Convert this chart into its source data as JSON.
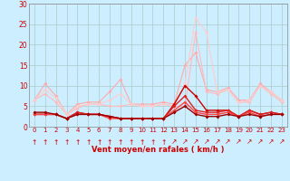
{
  "xlabel": "Vent moyen/en rafales ( km/h )",
  "bg_color": "#cceeff",
  "grid_color": "#aacccc",
  "xlim": [
    -0.5,
    23.5
  ],
  "ylim": [
    0,
    30
  ],
  "yticks": [
    0,
    5,
    10,
    15,
    20,
    25,
    30
  ],
  "xticks": [
    0,
    1,
    2,
    3,
    4,
    5,
    6,
    7,
    8,
    9,
    10,
    11,
    12,
    13,
    14,
    15,
    16,
    17,
    18,
    19,
    20,
    21,
    22,
    23
  ],
  "lines": [
    {
      "y": [
        6.5,
        10.5,
        7.5,
        3.0,
        5.5,
        6.0,
        6.0,
        8.5,
        11.5,
        5.5,
        5.5,
        5.5,
        6.0,
        5.5,
        15.0,
        18.0,
        9.0,
        8.5,
        9.5,
        6.5,
        6.5,
        10.5,
        8.5,
        6.5
      ],
      "color": "#ffaaaa",
      "lw": 0.8,
      "marker": "D",
      "ms": 2.0
    },
    {
      "y": [
        6.5,
        8.0,
        6.0,
        3.0,
        4.5,
        5.5,
        5.5,
        5.0,
        5.0,
        5.5,
        5.0,
        5.0,
        5.5,
        5.0,
        5.0,
        23.0,
        8.5,
        8.0,
        9.0,
        6.0,
        6.0,
        10.0,
        8.0,
        6.0
      ],
      "color": "#ffbbbb",
      "lw": 0.8,
      "marker": "D",
      "ms": 2.0
    },
    {
      "y": [
        6.5,
        9.0,
        7.0,
        3.0,
        5.0,
        5.5,
        5.5,
        6.5,
        8.0,
        5.5,
        5.0,
        5.0,
        5.5,
        5.0,
        10.5,
        26.5,
        23.0,
        8.5,
        9.0,
        6.0,
        6.5,
        10.0,
        8.5,
        6.5
      ],
      "color": "#ffcccc",
      "lw": 0.8,
      "marker": "D",
      "ms": 2.0
    },
    {
      "y": [
        3.0,
        3.0,
        3.0,
        2.0,
        3.5,
        3.0,
        3.0,
        2.5,
        2.0,
        2.0,
        2.0,
        2.0,
        2.0,
        5.5,
        10.0,
        7.5,
        4.0,
        4.0,
        4.0,
        2.5,
        4.0,
        3.0,
        3.5,
        3.0
      ],
      "color": "#cc0000",
      "lw": 1.0,
      "marker": "D",
      "ms": 2.0
    },
    {
      "y": [
        3.0,
        3.0,
        3.0,
        2.0,
        3.5,
        3.0,
        3.0,
        2.5,
        2.0,
        2.0,
        2.0,
        2.0,
        2.0,
        5.0,
        7.5,
        4.0,
        3.5,
        3.5,
        4.0,
        2.5,
        4.0,
        3.0,
        3.5,
        3.0
      ],
      "color": "#dd2222",
      "lw": 1.0,
      "marker": "D",
      "ms": 2.0
    },
    {
      "y": [
        3.0,
        3.0,
        3.0,
        2.0,
        3.0,
        3.0,
        3.0,
        2.0,
        2.0,
        2.0,
        2.0,
        2.0,
        2.0,
        4.0,
        6.0,
        3.5,
        3.0,
        3.0,
        3.5,
        2.5,
        3.5,
        2.5,
        3.0,
        3.0
      ],
      "color": "#ff4444",
      "lw": 1.0,
      "marker": "D",
      "ms": 2.0
    },
    {
      "y": [
        3.5,
        3.5,
        3.0,
        2.0,
        3.0,
        3.0,
        3.0,
        2.5,
        2.0,
        2.0,
        2.0,
        2.0,
        2.0,
        3.5,
        5.0,
        3.0,
        2.5,
        2.5,
        3.0,
        2.5,
        3.0,
        2.5,
        3.0,
        3.0
      ],
      "color": "#990000",
      "lw": 1.0,
      "marker": "D",
      "ms": 2.0
    }
  ],
  "wind_dir_straight": [
    0,
    1,
    2,
    3,
    4,
    5,
    6,
    7,
    8,
    9,
    10,
    11,
    12
  ],
  "wind_dir_angled": [
    13,
    14,
    15,
    16,
    17,
    18,
    19,
    20,
    21,
    22,
    23
  ],
  "arrow_straight": "↑",
  "arrow_angled": "↗"
}
